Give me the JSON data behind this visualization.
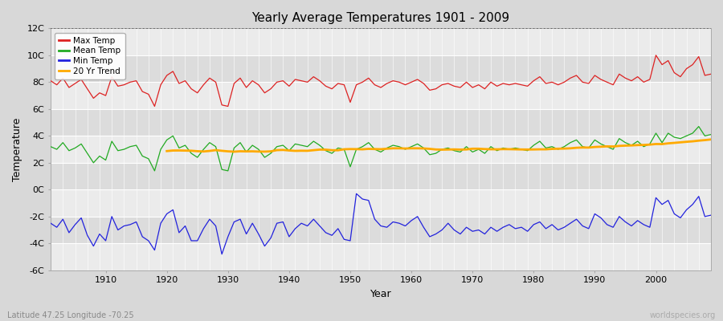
{
  "title": "Yearly Average Temperatures 1901 - 2009",
  "xlabel": "Year",
  "ylabel": "Temperature",
  "footer_left": "Latitude 47.25 Longitude -70.25",
  "footer_right": "worldspecies.org",
  "years": [
    1901,
    1902,
    1903,
    1904,
    1905,
    1906,
    1907,
    1908,
    1909,
    1910,
    1911,
    1912,
    1913,
    1914,
    1915,
    1916,
    1917,
    1918,
    1919,
    1920,
    1921,
    1922,
    1923,
    1924,
    1925,
    1926,
    1927,
    1928,
    1929,
    1930,
    1931,
    1932,
    1933,
    1934,
    1935,
    1936,
    1937,
    1938,
    1939,
    1940,
    1941,
    1942,
    1943,
    1944,
    1945,
    1946,
    1947,
    1948,
    1949,
    1950,
    1951,
    1952,
    1953,
    1954,
    1955,
    1956,
    1957,
    1958,
    1959,
    1960,
    1961,
    1962,
    1963,
    1964,
    1965,
    1966,
    1967,
    1968,
    1969,
    1970,
    1971,
    1972,
    1973,
    1974,
    1975,
    1976,
    1977,
    1978,
    1979,
    1980,
    1981,
    1982,
    1983,
    1984,
    1985,
    1986,
    1987,
    1988,
    1989,
    1990,
    1991,
    1992,
    1993,
    1994,
    1995,
    1996,
    1997,
    1998,
    1999,
    2000,
    2001,
    2002,
    2003,
    2004,
    2005,
    2006,
    2007,
    2008,
    2009
  ],
  "max_temp": [
    8.1,
    7.8,
    8.3,
    7.6,
    7.9,
    8.2,
    7.5,
    6.8,
    7.2,
    7.0,
    8.4,
    7.7,
    7.8,
    8.0,
    8.1,
    7.3,
    7.1,
    6.2,
    7.8,
    8.5,
    8.8,
    7.9,
    8.1,
    7.5,
    7.2,
    7.8,
    8.3,
    8.0,
    6.3,
    6.2,
    7.9,
    8.3,
    7.6,
    8.1,
    7.8,
    7.2,
    7.5,
    8.0,
    8.1,
    7.7,
    8.2,
    8.1,
    8.0,
    8.4,
    8.1,
    7.7,
    7.5,
    7.9,
    7.8,
    6.5,
    7.8,
    8.0,
    8.3,
    7.8,
    7.6,
    7.9,
    8.1,
    8.0,
    7.8,
    8.0,
    8.2,
    7.9,
    7.4,
    7.5,
    7.8,
    7.9,
    7.7,
    7.6,
    8.0,
    7.6,
    7.8,
    7.5,
    8.0,
    7.7,
    7.9,
    7.8,
    7.9,
    7.8,
    7.7,
    8.1,
    8.4,
    7.9,
    8.0,
    7.8,
    8.0,
    8.3,
    8.5,
    8.0,
    7.9,
    8.5,
    8.2,
    8.0,
    7.8,
    8.6,
    8.3,
    8.1,
    8.4,
    8.0,
    8.2,
    10.0,
    9.3,
    9.6,
    8.7,
    8.4,
    9.0,
    9.3,
    9.9,
    8.5,
    8.6
  ],
  "mean_temp": [
    3.2,
    3.0,
    3.5,
    2.9,
    3.1,
    3.4,
    2.7,
    2.0,
    2.5,
    2.2,
    3.6,
    2.9,
    3.0,
    3.2,
    3.3,
    2.5,
    2.3,
    1.4,
    3.0,
    3.7,
    4.0,
    3.1,
    3.3,
    2.7,
    2.4,
    3.0,
    3.5,
    3.2,
    1.5,
    1.4,
    3.1,
    3.5,
    2.8,
    3.3,
    3.0,
    2.4,
    2.7,
    3.2,
    3.3,
    2.9,
    3.4,
    3.3,
    3.2,
    3.6,
    3.3,
    2.9,
    2.7,
    3.1,
    3.0,
    1.7,
    3.0,
    3.2,
    3.5,
    3.0,
    2.8,
    3.1,
    3.3,
    3.2,
    3.0,
    3.2,
    3.4,
    3.1,
    2.6,
    2.7,
    3.0,
    3.1,
    2.9,
    2.8,
    3.2,
    2.8,
    3.0,
    2.7,
    3.2,
    2.9,
    3.1,
    3.0,
    3.1,
    3.0,
    2.9,
    3.3,
    3.6,
    3.1,
    3.2,
    3.0,
    3.2,
    3.5,
    3.7,
    3.2,
    3.1,
    3.7,
    3.4,
    3.2,
    3.0,
    3.8,
    3.5,
    3.3,
    3.6,
    3.2,
    3.4,
    4.2,
    3.5,
    4.2,
    3.9,
    3.8,
    4.0,
    4.2,
    4.7,
    4.0,
    4.1
  ],
  "min_temp": [
    -2.5,
    -2.8,
    -2.2,
    -3.2,
    -2.6,
    -2.1,
    -3.4,
    -4.2,
    -3.3,
    -3.8,
    -2.0,
    -3.0,
    -2.7,
    -2.6,
    -2.4,
    -3.5,
    -3.8,
    -4.5,
    -2.5,
    -1.8,
    -1.5,
    -3.2,
    -2.7,
    -3.8,
    -3.8,
    -2.9,
    -2.2,
    -2.7,
    -4.8,
    -3.5,
    -2.4,
    -2.2,
    -3.3,
    -2.5,
    -3.3,
    -4.2,
    -3.6,
    -2.5,
    -2.4,
    -3.5,
    -2.9,
    -2.5,
    -2.7,
    -2.2,
    -2.7,
    -3.2,
    -3.4,
    -2.9,
    -3.7,
    -3.8,
    -0.3,
    -0.7,
    -0.8,
    -2.2,
    -2.7,
    -2.8,
    -2.4,
    -2.5,
    -2.7,
    -2.3,
    -2.0,
    -2.8,
    -3.5,
    -3.3,
    -3.0,
    -2.5,
    -3.0,
    -3.3,
    -2.8,
    -3.1,
    -3.0,
    -3.3,
    -2.8,
    -3.1,
    -2.8,
    -2.6,
    -2.9,
    -2.8,
    -3.1,
    -2.6,
    -2.4,
    -2.9,
    -2.6,
    -3.0,
    -2.8,
    -2.5,
    -2.2,
    -2.7,
    -2.9,
    -1.8,
    -2.1,
    -2.6,
    -2.8,
    -2.0,
    -2.4,
    -2.7,
    -2.3,
    -2.6,
    -2.8,
    -0.6,
    -1.1,
    -0.8,
    -1.8,
    -2.1,
    -1.5,
    -1.1,
    -0.5,
    -2.0,
    -1.9
  ],
  "ylim": [
    -6,
    12
  ],
  "yticks": [
    -6,
    -4,
    -2,
    0,
    2,
    4,
    6,
    8,
    10,
    12
  ],
  "ytick_labels": [
    "-6C",
    "-4C",
    "-2C",
    "0C",
    "2C",
    "4C",
    "6C",
    "8C",
    "10C",
    "12C"
  ],
  "xlim": [
    1901,
    2009
  ],
  "xticks": [
    1910,
    1920,
    1930,
    1940,
    1950,
    1960,
    1970,
    1980,
    1990,
    2000
  ],
  "max_color": "#dd2222",
  "mean_color": "#22aa22",
  "min_color": "#2222dd",
  "trend_color": "#ffaa00",
  "bg_color": "#d8d8d8",
  "plot_bg_light": "#ebebeb",
  "plot_bg_dark": "#dcdcdc",
  "grid_color": "#ffffff",
  "dotted_line_y": 12,
  "dotted_line_color": "#555555",
  "band_boundaries": [
    -6,
    -4,
    -2,
    0,
    2,
    4,
    6,
    8,
    10,
    12
  ]
}
